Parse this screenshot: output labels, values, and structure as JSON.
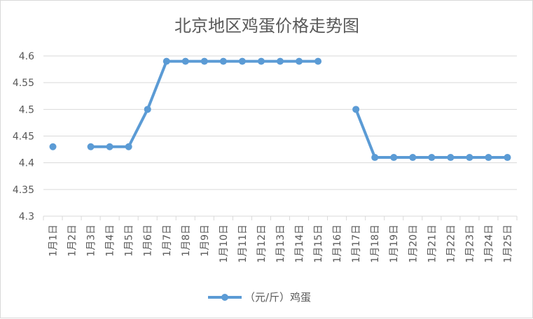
{
  "chart_data": {
    "type": "line",
    "title": "北京地区鸡蛋价格走势图",
    "xlabel": "",
    "ylabel": "",
    "categories": [
      "1月1日",
      "1月2日",
      "1月3日",
      "1月4日",
      "1月5日",
      "1月6日",
      "1月7日",
      "1月8日",
      "1月9日",
      "1月10日",
      "1月11日",
      "1月12日",
      "1月13日",
      "1月14日",
      "1月15日",
      "1月16日",
      "1月17日",
      "1月18日",
      "1月19日",
      "1月20日",
      "1月21日",
      "1月22日",
      "1月23日",
      "1月24日",
      "1月25日"
    ],
    "series": [
      {
        "name": "（元/斤）鸡蛋",
        "color": "#5b9bd5",
        "values": [
          4.43,
          null,
          4.43,
          4.43,
          4.43,
          4.5,
          4.59,
          4.59,
          4.59,
          4.59,
          4.59,
          4.59,
          4.59,
          4.59,
          4.59,
          null,
          4.5,
          4.41,
          4.41,
          4.41,
          4.41,
          4.41,
          4.41,
          4.41,
          4.41
        ]
      }
    ],
    "yticks": [
      "4.3",
      "4.35",
      "4.4",
      "4.45",
      "4.5",
      "4.55",
      "4.6"
    ],
    "ylim": [
      4.3,
      4.6
    ],
    "grid": true,
    "legend": "bottom"
  }
}
